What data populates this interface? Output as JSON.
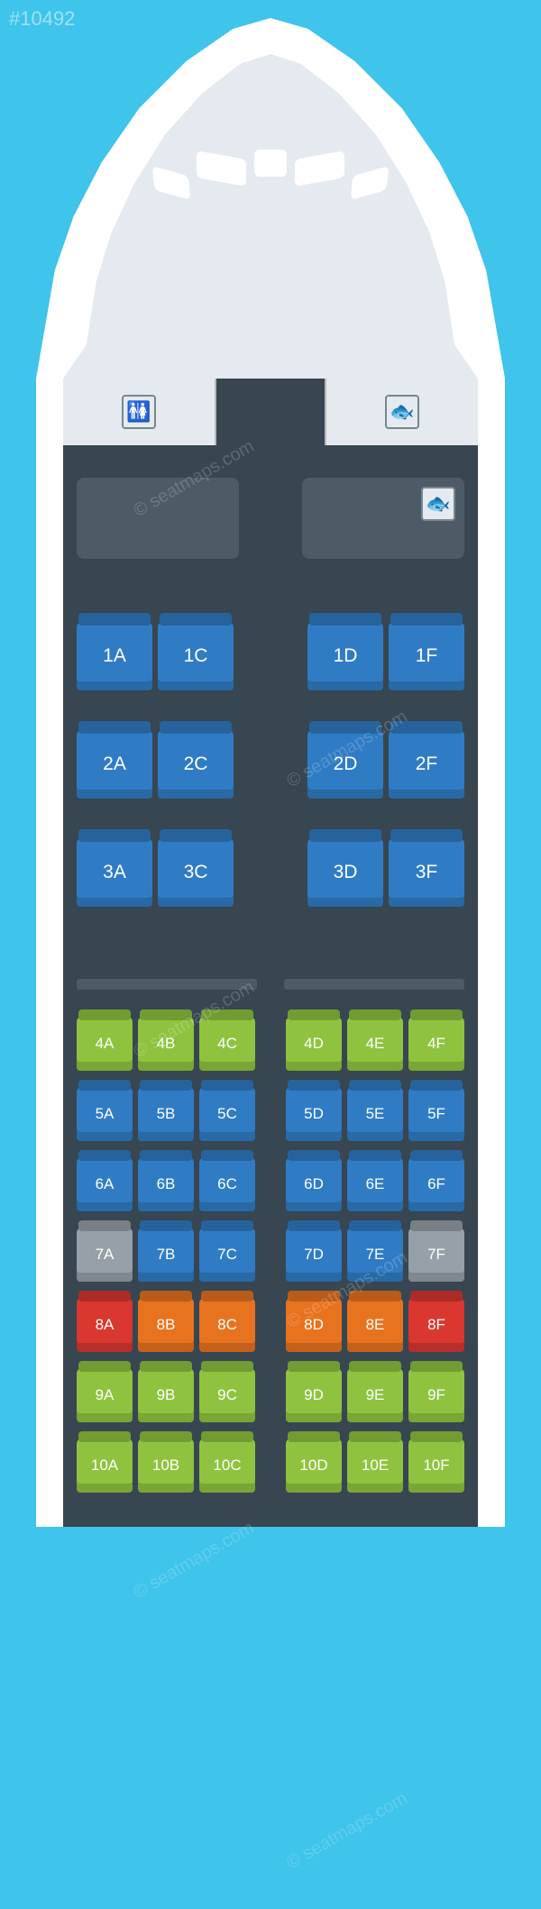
{
  "watermark_id": "#10492",
  "watermark_text": "© seatmaps.com",
  "background_color": "#3fc4eb",
  "fuselage_color": "#ffffff",
  "cabin_color": "#374651",
  "bulkhead_color": "#4c5b66",
  "nose_inner_color": "#e4eaef",
  "seat_colors": {
    "blue": "#2f7cc4",
    "green": "#8fc33f",
    "grey": "#96a0a8",
    "orange": "#e8731f",
    "red": "#d9372f"
  },
  "business_rows": [
    {
      "left": [
        {
          "label": "1A",
          "color": "blue"
        },
        {
          "label": "1C",
          "color": "blue"
        }
      ],
      "right": [
        {
          "label": "1D",
          "color": "blue"
        },
        {
          "label": "1F",
          "color": "blue"
        }
      ]
    },
    {
      "left": [
        {
          "label": "2A",
          "color": "blue"
        },
        {
          "label": "2C",
          "color": "blue"
        }
      ],
      "right": [
        {
          "label": "2D",
          "color": "blue"
        },
        {
          "label": "2F",
          "color": "blue"
        }
      ]
    },
    {
      "left": [
        {
          "label": "3A",
          "color": "blue"
        },
        {
          "label": "3C",
          "color": "blue"
        }
      ],
      "right": [
        {
          "label": "3D",
          "color": "blue"
        },
        {
          "label": "3F",
          "color": "blue"
        }
      ]
    }
  ],
  "economy_rows": [
    {
      "left": [
        {
          "label": "4A",
          "color": "green"
        },
        {
          "label": "4B",
          "color": "green"
        },
        {
          "label": "4C",
          "color": "green"
        }
      ],
      "right": [
        {
          "label": "4D",
          "color": "green"
        },
        {
          "label": "4E",
          "color": "green"
        },
        {
          "label": "4F",
          "color": "green"
        }
      ]
    },
    {
      "left": [
        {
          "label": "5A",
          "color": "blue"
        },
        {
          "label": "5B",
          "color": "blue"
        },
        {
          "label": "5C",
          "color": "blue"
        }
      ],
      "right": [
        {
          "label": "5D",
          "color": "blue"
        },
        {
          "label": "5E",
          "color": "blue"
        },
        {
          "label": "5F",
          "color": "blue"
        }
      ]
    },
    {
      "left": [
        {
          "label": "6A",
          "color": "blue"
        },
        {
          "label": "6B",
          "color": "blue"
        },
        {
          "label": "6C",
          "color": "blue"
        }
      ],
      "right": [
        {
          "label": "6D",
          "color": "blue"
        },
        {
          "label": "6E",
          "color": "blue"
        },
        {
          "label": "6F",
          "color": "blue"
        }
      ]
    },
    {
      "left": [
        {
          "label": "7A",
          "color": "grey"
        },
        {
          "label": "7B",
          "color": "blue"
        },
        {
          "label": "7C",
          "color": "blue"
        }
      ],
      "right": [
        {
          "label": "7D",
          "color": "blue"
        },
        {
          "label": "7E",
          "color": "blue"
        },
        {
          "label": "7F",
          "color": "grey"
        }
      ]
    },
    {
      "left": [
        {
          "label": "8A",
          "color": "red"
        },
        {
          "label": "8B",
          "color": "orange"
        },
        {
          "label": "8C",
          "color": "orange"
        }
      ],
      "right": [
        {
          "label": "8D",
          "color": "orange"
        },
        {
          "label": "8E",
          "color": "orange"
        },
        {
          "label": "8F",
          "color": "red"
        }
      ]
    },
    {
      "left": [
        {
          "label": "9A",
          "color": "green"
        },
        {
          "label": "9B",
          "color": "green"
        },
        {
          "label": "9C",
          "color": "green"
        }
      ],
      "right": [
        {
          "label": "9D",
          "color": "green"
        },
        {
          "label": "9E",
          "color": "green"
        },
        {
          "label": "9F",
          "color": "green"
        }
      ]
    },
    {
      "left": [
        {
          "label": "10A",
          "color": "green"
        },
        {
          "label": "10B",
          "color": "green"
        },
        {
          "label": "10C",
          "color": "green"
        }
      ],
      "right": [
        {
          "label": "10D",
          "color": "green"
        },
        {
          "label": "10E",
          "color": "green"
        },
        {
          "label": "10F",
          "color": "green"
        }
      ]
    }
  ],
  "icons": {
    "lavatory": "🚻",
    "galley": "🐟"
  }
}
